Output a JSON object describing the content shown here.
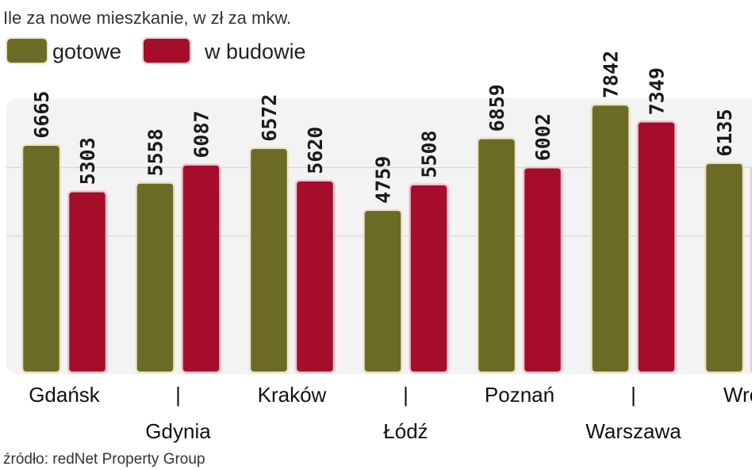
{
  "chart_data": {
    "type": "bar",
    "title": "Ile za nowe mieszkanie, w zł za mkw.",
    "categories": [
      "Gdańsk",
      "Gdynia",
      "Kraków",
      "Łódź",
      "Poznań",
      "Warszawa",
      "Wrocław"
    ],
    "category_labels_shown": [
      "Gdańsk",
      "Gdynia",
      "Kraków",
      "Łódź",
      "Poznań",
      "Warszawa",
      "Wroc"
    ],
    "series": [
      {
        "name": "gotowe",
        "color": "#6b6b26",
        "values": [
          6665,
          5558,
          6572,
          4759,
          6859,
          7842,
          6135
        ]
      },
      {
        "name": "w budowie",
        "color": "#a50d2a",
        "values": [
          5303,
          6087,
          5620,
          5508,
          6002,
          7349,
          null
        ]
      }
    ],
    "ylim": [
      0,
      8000
    ],
    "gridlines": [
      4000,
      6000
    ],
    "grid": true,
    "legend": "top-left",
    "source": "źródło: redNet Property Group"
  }
}
